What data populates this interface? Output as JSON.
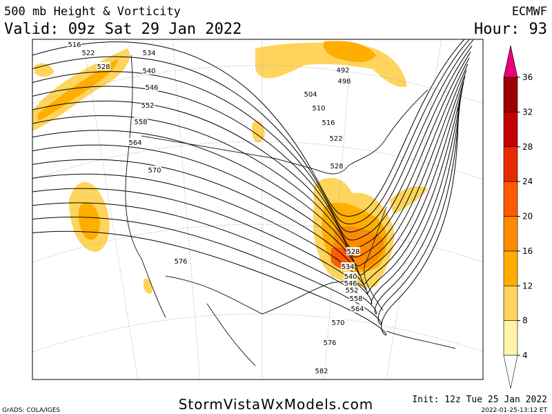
{
  "header": {
    "title": "500 mb Height & Vorticity",
    "valid": "Valid: 09z Sat 29 Jan 2022",
    "model": "ECMWF",
    "hour": "Hour: 93"
  },
  "map": {
    "contour_labels": [
      "516",
      "522",
      "528",
      "534",
      "540",
      "546",
      "552",
      "558",
      "564",
      "570",
      "576",
      "492",
      "498",
      "504",
      "510",
      "516",
      "522",
      "528",
      "528",
      "534",
      "540",
      "546",
      "552",
      "558",
      "564",
      "570",
      "576",
      "582"
    ]
  },
  "colorbar": {
    "levels": [
      4,
      8,
      12,
      16,
      20,
      24,
      28,
      32,
      36
    ],
    "colors": [
      "#fff3a8",
      "#ffd45c",
      "#ffae00",
      "#ff8a00",
      "#ff5a00",
      "#e92a00",
      "#c40000",
      "#9e0000"
    ],
    "above_color": "#e8007c"
  },
  "footer": {
    "credit": "GrADS: COLA/IGES",
    "site": "StormVistaWxModels.com",
    "init": "Init: 12z Tue 25 Jan 2022",
    "timestamp": "2022-01-25-13:12 ET"
  }
}
